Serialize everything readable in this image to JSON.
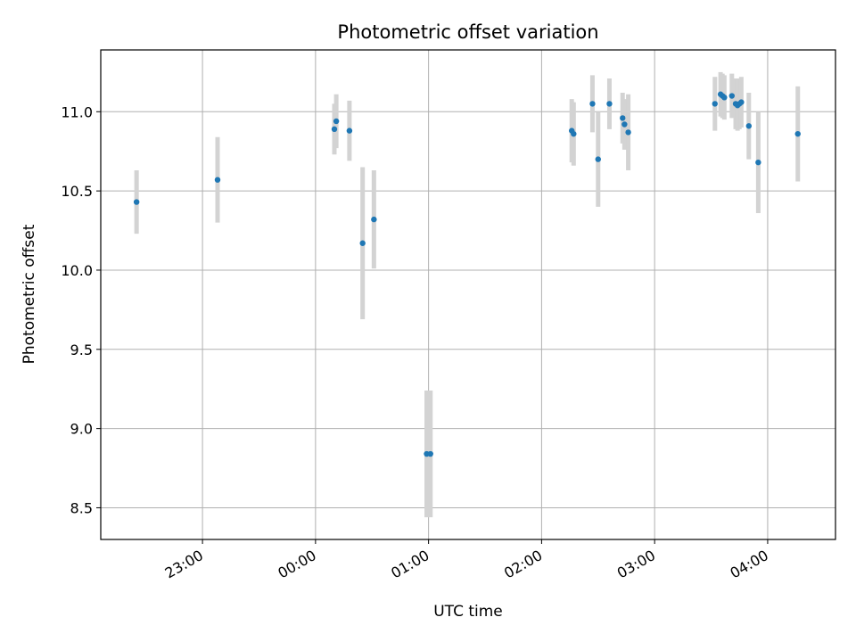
{
  "chart_data": {
    "type": "scatter",
    "title": "Photometric offset variation",
    "xlabel": "UTC time",
    "ylabel": "Photometric offset",
    "x_unit": "UTC time (HH:MM)",
    "xlim": [
      "22:06",
      "04:36"
    ],
    "ylim": [
      8.3,
      11.39
    ],
    "grid": true,
    "x_ticks": [
      "23:00",
      "00:00",
      "01:00",
      "02:00",
      "03:00",
      "04:00"
    ],
    "y_ticks": [
      "8.5",
      "9.0",
      "9.5",
      "10.0",
      "10.5",
      "11.0"
    ],
    "marker_color": "#1f77b4",
    "errorbar_color": "#d3d3d3",
    "points": [
      {
        "time": "22:25",
        "y": 10.43,
        "err": 0.2
      },
      {
        "time": "23:08",
        "y": 10.57,
        "err": 0.27
      },
      {
        "time": "00:10",
        "y": 10.89,
        "err": 0.16
      },
      {
        "time": "00:11",
        "y": 10.94,
        "err": 0.17
      },
      {
        "time": "00:18",
        "y": 10.88,
        "err": 0.19
      },
      {
        "time": "00:25",
        "y": 10.17,
        "err": 0.48
      },
      {
        "time": "00:31",
        "y": 10.32,
        "err": 0.31
      },
      {
        "time": "00:59",
        "y": 8.84,
        "err": 0.4
      },
      {
        "time": "01:01",
        "y": 8.84,
        "err": 0.4
      },
      {
        "time": "02:16",
        "y": 10.88,
        "err": 0.2
      },
      {
        "time": "02:17",
        "y": 10.86,
        "err": 0.2
      },
      {
        "time": "02:27",
        "y": 11.05,
        "err": 0.18
      },
      {
        "time": "02:30",
        "y": 10.7,
        "err": 0.3
      },
      {
        "time": "02:36",
        "y": 11.05,
        "err": 0.16
      },
      {
        "time": "02:43",
        "y": 10.96,
        "err": 0.16
      },
      {
        "time": "02:44",
        "y": 10.92,
        "err": 0.16
      },
      {
        "time": "02:46",
        "y": 10.87,
        "err": 0.24
      },
      {
        "time": "03:32",
        "y": 11.05,
        "err": 0.17
      },
      {
        "time": "03:35",
        "y": 11.11,
        "err": 0.14
      },
      {
        "time": "03:36",
        "y": 11.1,
        "err": 0.14
      },
      {
        "time": "03:37",
        "y": 11.09,
        "err": 0.14
      },
      {
        "time": "03:41",
        "y": 11.1,
        "err": 0.14
      },
      {
        "time": "03:43",
        "y": 11.05,
        "err": 0.16
      },
      {
        "time": "03:44",
        "y": 11.04,
        "err": 0.16
      },
      {
        "time": "03:45",
        "y": 11.05,
        "err": 0.16
      },
      {
        "time": "03:46",
        "y": 11.06,
        "err": 0.16
      },
      {
        "time": "03:50",
        "y": 10.91,
        "err": 0.21
      },
      {
        "time": "03:55",
        "y": 10.68,
        "err": 0.32
      },
      {
        "time": "04:16",
        "y": 10.86,
        "err": 0.3
      }
    ]
  }
}
